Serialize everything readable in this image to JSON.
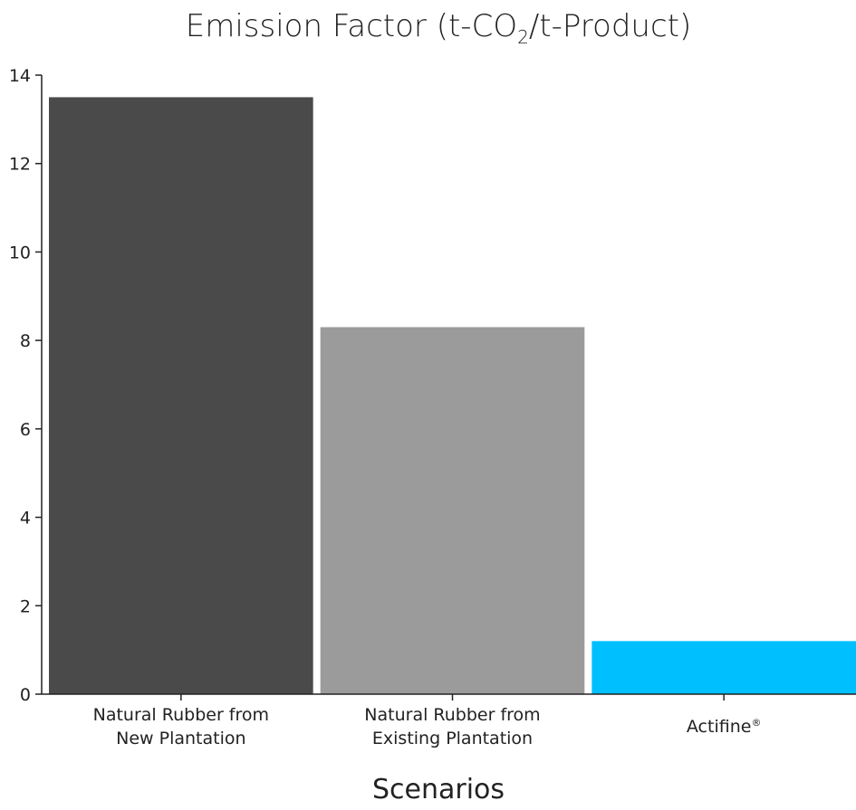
{
  "chart_data": {
    "type": "bar",
    "title": {
      "prefix": "Emission Factor (t-CO",
      "subscript": "2",
      "suffix": "/t-Product)"
    },
    "xlabel": "Scenarios",
    "ylabel": "",
    "ylim": [
      0,
      14
    ],
    "yticks": [
      "0",
      "2",
      "4",
      "6",
      "8",
      "10",
      "12",
      "14"
    ],
    "categories": [
      {
        "lines": [
          "Natural Rubber from",
          "New Plantation"
        ]
      },
      {
        "lines": [
          "Natural Rubber from",
          "Existing Plantation"
        ]
      },
      {
        "lines": [
          "Actifine"
        ],
        "superscript": "®"
      }
    ],
    "values": [
      13.5,
      8.3,
      1.2
    ],
    "colors": [
      "#4a4a4a",
      "#9b9b9b",
      "#00bfff"
    ],
    "grid": false,
    "legend": "none"
  }
}
